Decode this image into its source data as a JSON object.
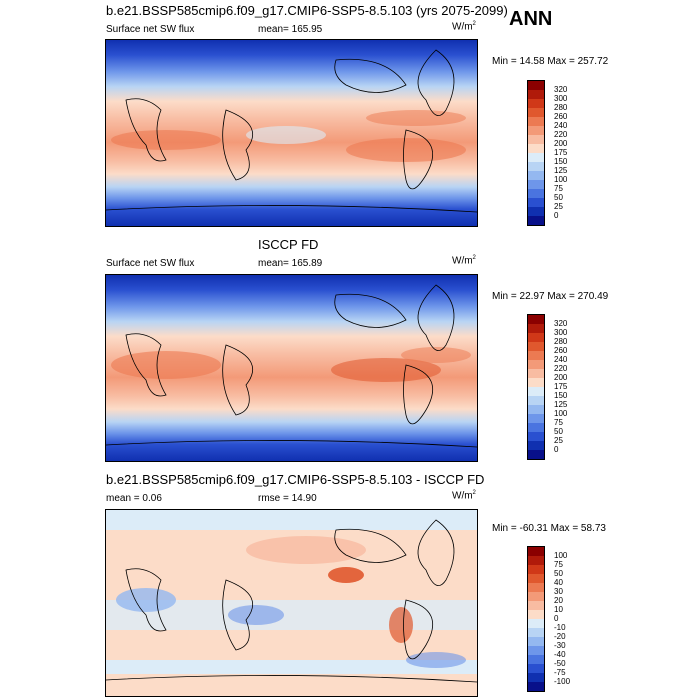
{
  "season": "ANN",
  "panels": [
    {
      "id": "model",
      "title": "b.e21.BSSP585cmip6.f09_g17.CMIP6-SSP5-8.5.103 (yrs 2075-2099)",
      "left_label": "Surface net SW flux",
      "center_label": "mean= 165.95",
      "units_base": "W/m",
      "units_exp": "2",
      "minmax": "Min = 14.58 Max = 257.72"
    },
    {
      "id": "obs",
      "title": "ISCCP FD",
      "left_label": "Surface net SW flux",
      "center_label": "mean= 165.89",
      "units_base": "W/m",
      "units_exp": "2",
      "minmax": "Min = 22.97 Max = 270.49"
    },
    {
      "id": "diff",
      "title": "b.e21.BSSP585cmip6.f09_g17.CMIP6-SSP5-8.5.103 - ISCCP FD",
      "left_label": "mean =   0.06",
      "center_label": "rmse =  14.90",
      "units_base": "W/m",
      "units_exp": "2",
      "minmax": "Min = -60.31 Max =  58.73"
    }
  ],
  "colorbar_abs": {
    "labels": [
      "320",
      "300",
      "280",
      "260",
      "240",
      "220",
      "200",
      "175",
      "150",
      "125",
      "100",
      "75",
      "50",
      "25",
      "0"
    ],
    "colors": [
      "#8b0000",
      "#b01a0a",
      "#d03818",
      "#e0582e",
      "#ec7a52",
      "#f39a78",
      "#f8bca2",
      "#fcdcc8",
      "#dcecf8",
      "#b8d4f4",
      "#94b8f0",
      "#6e96ea",
      "#4a74e0",
      "#2a50d0",
      "#1030b0",
      "#08108a"
    ]
  },
  "colorbar_diff": {
    "labels": [
      "100",
      "75",
      "50",
      "40",
      "30",
      "20",
      "10",
      "0",
      "-10",
      "-20",
      "-30",
      "-40",
      "-50",
      "-75",
      "-100"
    ],
    "colors": [
      "#8b0000",
      "#b01a0a",
      "#d03818",
      "#e0582e",
      "#ec7a52",
      "#f39a78",
      "#f8bca2",
      "#fcdcc8",
      "#dcecf8",
      "#b8d4f4",
      "#94b8f0",
      "#6e96ea",
      "#4a74e0",
      "#2a50d0",
      "#1030b0",
      "#08108a"
    ]
  }
}
